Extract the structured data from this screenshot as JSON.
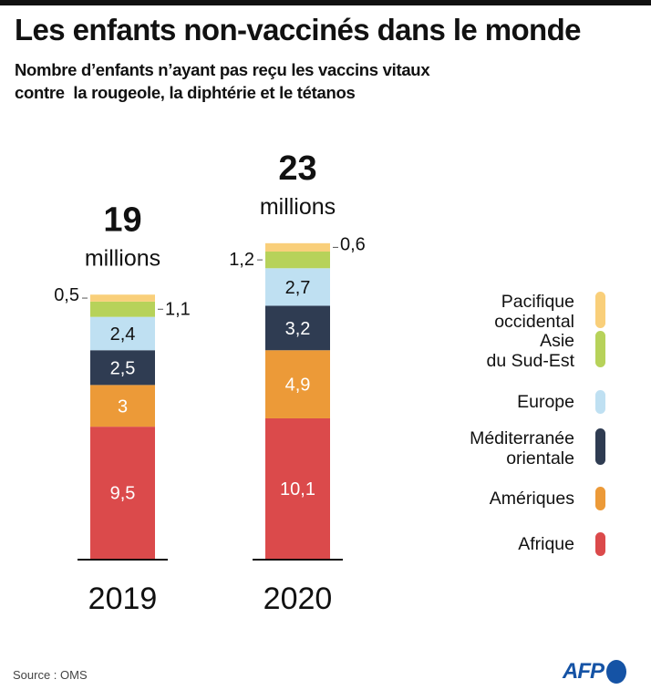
{
  "title": "Les enfants non-vaccinés dans le monde",
  "subtitle": "Nombre d’enfants n’ayant pas reçu les vaccins vitaux\ncontre  la rougeole, la diphtérie et le tétanos",
  "source": "Source : OMS",
  "logo": {
    "text": "AFP",
    "color": "#1553a5"
  },
  "chart_data": {
    "type": "bar",
    "stacked": true,
    "title": "Les enfants non-vaccinés dans le monde",
    "unit": "millions",
    "categories": [
      "2019",
      "2020"
    ],
    "totals": [
      {
        "value": "19",
        "unit": "millions"
      },
      {
        "value": "23",
        "unit": "millions"
      }
    ],
    "series": [
      {
        "name": "Afrique",
        "color": "#db4a4b",
        "values": [
          9.5,
          10.1
        ],
        "labels": [
          "9,5",
          "10,1"
        ],
        "label_color": "#ffffff"
      },
      {
        "name": "Amériques",
        "color": "#ec9a38",
        "values": [
          3,
          4.9
        ],
        "labels": [
          "3",
          "4,9"
        ],
        "label_color": "#ffffff"
      },
      {
        "name": "Méditerranée orientale",
        "color": "#2f3c52",
        "values": [
          2.5,
          3.2
        ],
        "labels": [
          "2,5",
          "3,2"
        ],
        "label_color": "#ffffff"
      },
      {
        "name": "Europe",
        "color": "#bfe0f2",
        "values": [
          2.4,
          2.7
        ],
        "labels": [
          "2,4",
          "2,7"
        ],
        "label_color": "#111111"
      },
      {
        "name": "Asie du Sud-Est",
        "color": "#b7d25a",
        "values": [
          1.1,
          1.2
        ],
        "labels": [
          "1,1",
          "1,2"
        ],
        "label_color": "#111111"
      },
      {
        "name": "Pacifique occidental",
        "color": "#f9cf7a",
        "values": [
          0.5,
          0.6
        ],
        "labels": [
          "0,5",
          "0,6"
        ],
        "label_color": "#111111"
      }
    ],
    "legend": {
      "placement": "right",
      "items": [
        {
          "lines": [
            "Pacifique",
            "occidental"
          ],
          "color": "#f9cf7a"
        },
        {
          "lines": [
            "Asie",
            "du Sud-Est"
          ],
          "color": "#b7d25a"
        },
        {
          "lines": [
            "Europe"
          ],
          "color": "#bfe0f2"
        },
        {
          "lines": [
            "Méditerranée",
            "orientale"
          ],
          "color": "#2f3c52"
        },
        {
          "lines": [
            "Amériques"
          ],
          "color": "#ec9a38"
        },
        {
          "lines": [
            "Afrique"
          ],
          "color": "#db4a4b"
        }
      ]
    },
    "xlabel": "",
    "ylabel": "",
    "grid": false
  }
}
